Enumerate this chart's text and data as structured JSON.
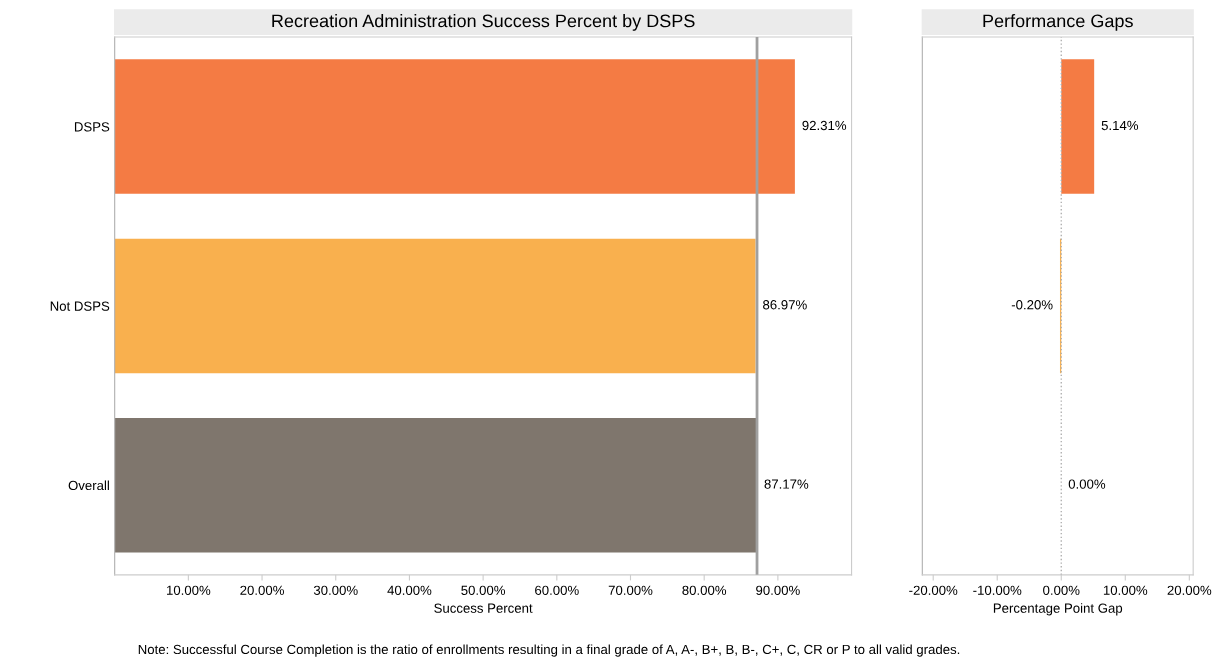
{
  "chart_data": [
    {
      "type": "bar",
      "orientation": "horizontal",
      "title": "Recreation Administration Success Percent by DSPS",
      "xlabel": "Success Percent",
      "categories": [
        "DSPS",
        "Not DSPS",
        "Overall"
      ],
      "values": [
        92.31,
        86.97,
        87.17
      ],
      "colors": [
        "#f47b44",
        "#f9b04e",
        "#7f766d"
      ],
      "value_labels": [
        "92.31%",
        "86.97%",
        "87.17%"
      ],
      "xlim": [
        0,
        100
      ],
      "xticks": [
        {
          "value": 10,
          "label": "10.00%"
        },
        {
          "value": 20,
          "label": "20.00%"
        },
        {
          "value": 30,
          "label": "30.00%"
        },
        {
          "value": 40,
          "label": "40.00%"
        },
        {
          "value": 50,
          "label": "50.00%"
        },
        {
          "value": 60,
          "label": "60.00%"
        },
        {
          "value": 70,
          "label": "70.00%"
        },
        {
          "value": 80,
          "label": "80.00%"
        },
        {
          "value": 90,
          "label": "90.00%"
        }
      ],
      "ref_lines": [
        {
          "axis": "x",
          "value": 87.17,
          "color": "#a0a0a0",
          "line_style": "solid"
        }
      ],
      "grid": false,
      "legend": false,
      "annotations": [
        "Note: Successful Course Completion is the ratio of enrollments resulting in a final grade of A, A-, B+, B, B-, C+, C, CR or P to all valid grades."
      ]
    },
    {
      "type": "bar",
      "orientation": "horizontal",
      "title": "Performance Gaps",
      "xlabel": "Percentage Point Gap",
      "categories": [
        null,
        null,
        null
      ],
      "values": [
        5.14,
        -0.2,
        0.0
      ],
      "colors": [
        "#f47b44",
        "#f9b04e",
        "#7f766d"
      ],
      "value_labels": [
        "5.14%",
        "-0.20%",
        "0.00%"
      ],
      "xlim": [
        -21.7,
        20.6
      ],
      "xticks": [
        {
          "value": -20,
          "label": "-20.00%"
        },
        {
          "value": -10,
          "label": "-10.00%"
        },
        {
          "value": 0,
          "label": "0.00%"
        },
        {
          "value": 10,
          "label": "10.00%"
        },
        {
          "value": 20,
          "label": "20.00%"
        }
      ],
      "ref_lines": [
        {
          "axis": "x",
          "value": 0,
          "color": "#b0b0b0",
          "line_style": "dotted"
        }
      ],
      "tick_labels": "x",
      "grid": false,
      "legend": false
    }
  ]
}
